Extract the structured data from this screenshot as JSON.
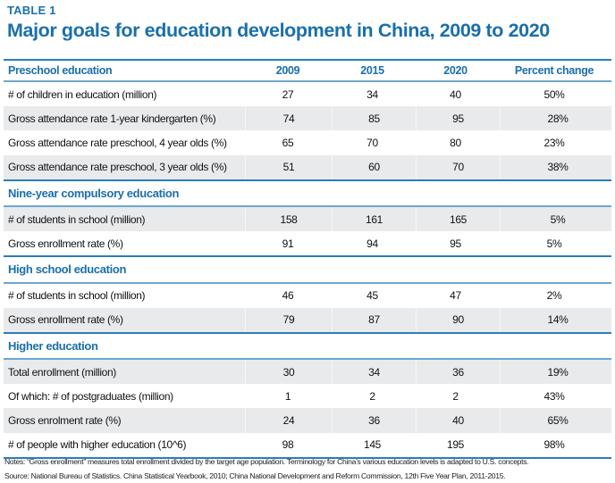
{
  "table_label": "TABLE 1",
  "title": "Major goals for education development in China, 2009 to 2020",
  "columns": [
    "2009",
    "2015",
    "2020",
    "Percent change"
  ],
  "sections": [
    {
      "name": "Preschool education",
      "rows": [
        {
          "label": "# of children in education (million)",
          "values": [
            "27",
            "34",
            "40",
            "50%"
          ],
          "shaded": false
        },
        {
          "label": "Gross attendance rate 1-year kindergarten (%)",
          "values": [
            "74",
            "85",
            "95",
            "28%"
          ],
          "shaded": true
        },
        {
          "label": "Gross attendance rate preschool, 4 year olds (%)",
          "values": [
            "65",
            "70",
            "80",
            "23%"
          ],
          "shaded": false
        },
        {
          "label": "Gross attendance rate preschool, 3 year olds (%)",
          "values": [
            "51",
            "60",
            "70",
            "38%"
          ],
          "shaded": true
        }
      ]
    },
    {
      "name": "Nine-year compulsory education",
      "rows": [
        {
          "label": "# of students in school (million)",
          "values": [
            "158",
            "161",
            "165",
            "5%"
          ],
          "shaded": true
        },
        {
          "label": "Gross enrollment rate (%)",
          "values": [
            "91",
            "94",
            "95",
            "5%"
          ],
          "shaded": false
        }
      ]
    },
    {
      "name": "High school education",
      "rows": [
        {
          "label": "# of students in school (million)",
          "values": [
            "46",
            "45",
            "47",
            "2%"
          ],
          "shaded": false
        },
        {
          "label": "Gross enrollment rate (%)",
          "values": [
            "79",
            "87",
            "90",
            "14%"
          ],
          "shaded": true
        }
      ]
    },
    {
      "name": "Higher education",
      "rows": [
        {
          "label": "Total enrollment (million)",
          "values": [
            "30",
            "34",
            "36",
            "19%"
          ],
          "shaded": true
        },
        {
          "label": "Of which: # of postgraduates (million)",
          "values": [
            "1",
            "2",
            "2",
            "43%"
          ],
          "shaded": false
        },
        {
          "label": "Gross enrolment rate (%)",
          "values": [
            "24",
            "36",
            "40",
            "65%"
          ],
          "shaded": true
        },
        {
          "label": "# of people with higher education (10^6)",
          "values": [
            "98",
            "145",
            "195",
            "98%"
          ],
          "shaded": false
        }
      ]
    }
  ],
  "notes": "Notes: “Gross enrollment” measures total enrollment divided by the target age population. Terminology for China’s various education levels is adapted to U.S. concepts.",
  "source": "Source: National Bureau of Statistics. China Statistical Yearbook, 2010; China National Development and Reform Commission, 12th Five Year Plan, 2011-2015.",
  "colors": {
    "accent": "#1a6fac",
    "shade": "#e9eaec"
  }
}
